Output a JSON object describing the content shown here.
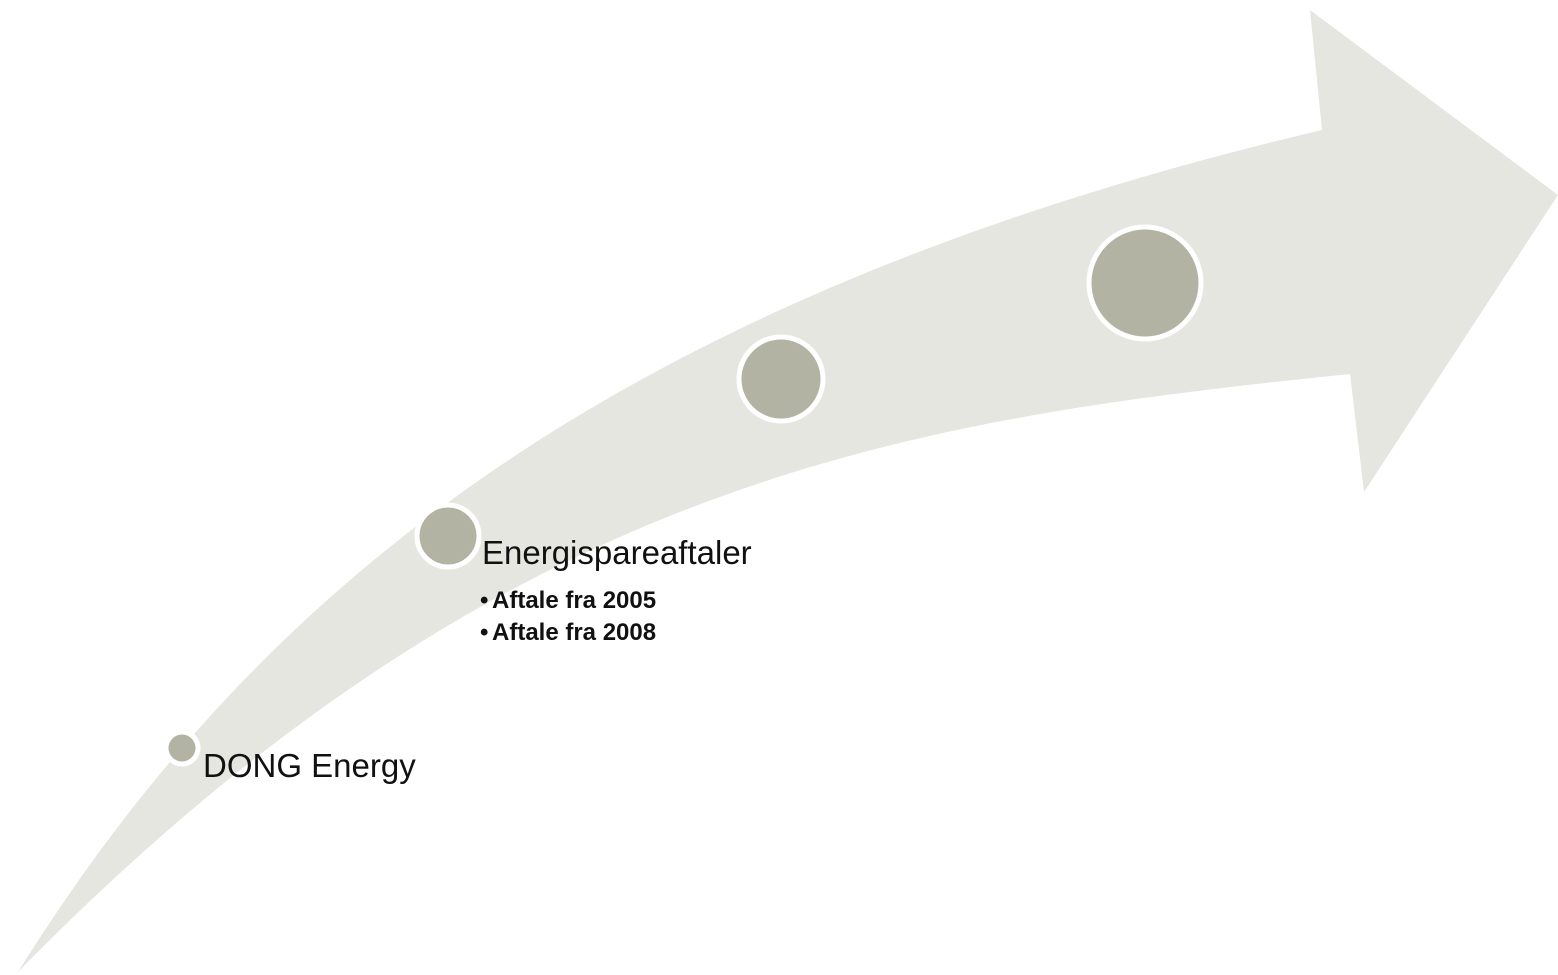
{
  "steps": [
    {
      "label": "DONG Energy"
    },
    {
      "label": "Energispareaftaler",
      "bullets": [
        "Aftale fra 2005",
        "Aftale fra 2008"
      ]
    }
  ]
}
